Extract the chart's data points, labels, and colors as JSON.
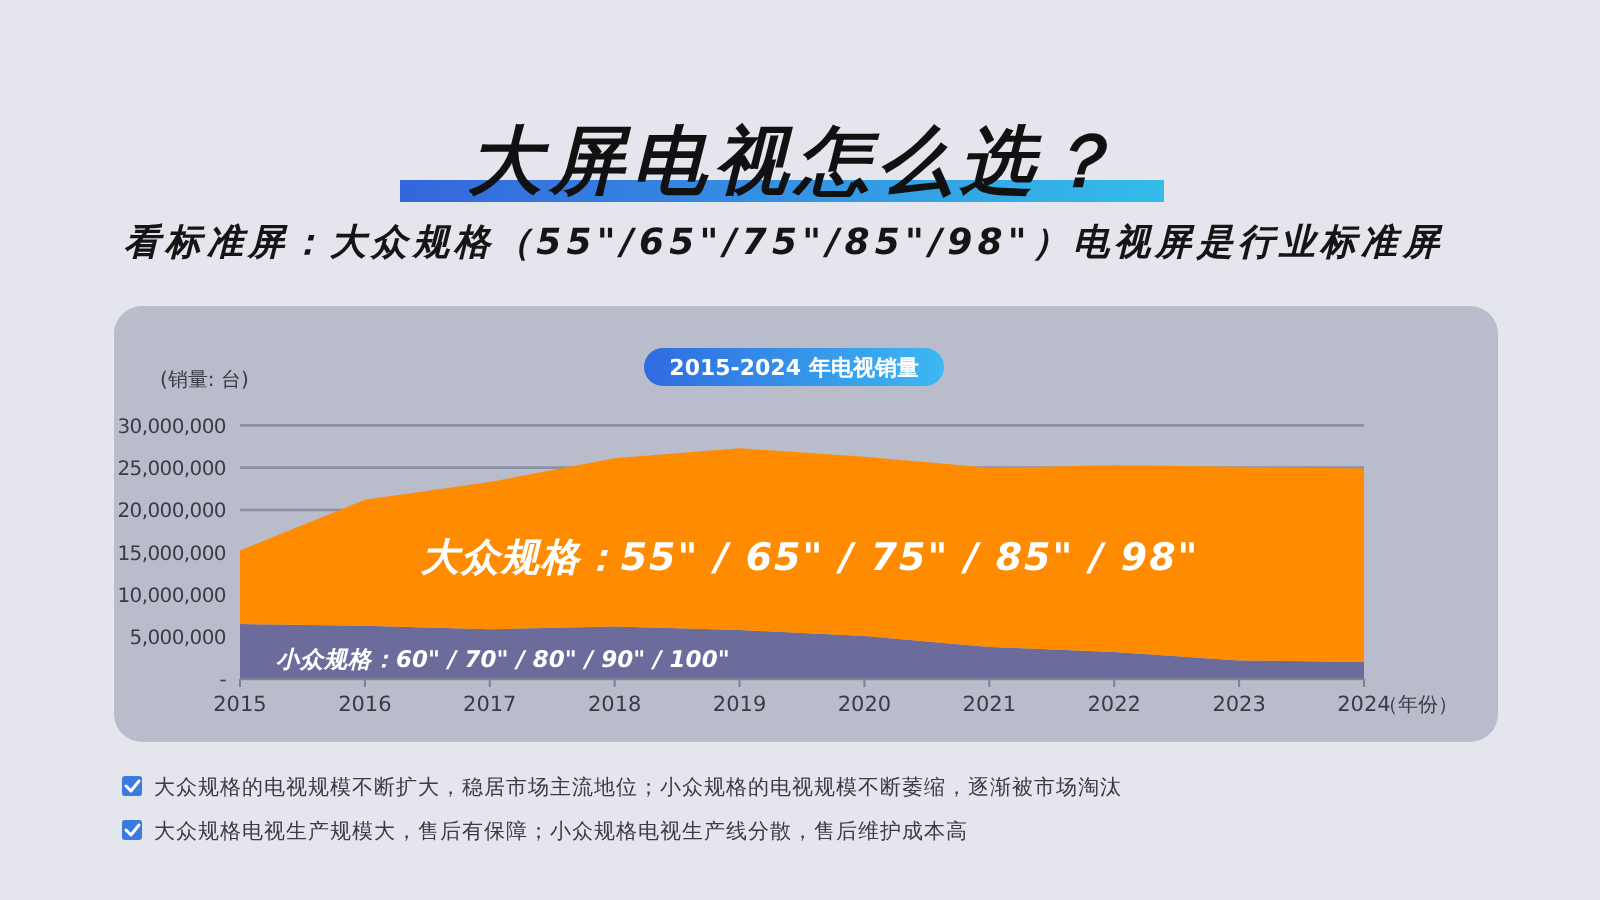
{
  "chart_data": {
    "type": "area",
    "title": "大屏电视怎么选？",
    "subtitle": "看标准屏：大众规格（55\"/65\"/75\"/85\"/98\"）电视屏是行业标准屏",
    "xlabel": "（年份）",
    "ylabel": "(销量: 台)",
    "annotations": [
      "2015-2024 年电视销量",
      "大众规格的电视规模不断扩大，稳居市场主流地位；小众规格的电视规模不断萎缩，逐渐被市场淘汰",
      "大众规格电视生产规模大，售后有保障；小众规格电视生产线分散，售后维护成本高"
    ],
    "x": [
      2015,
      2016,
      2017,
      2018,
      2019,
      2020,
      2021,
      2022,
      2023,
      2024
    ],
    "stacked": true,
    "series": [
      {
        "name": "小众规格：60\" / 70\" / 80\" / 90\" / 100\"",
        "color": "#6b6c9c",
        "values": [
          6500000,
          6300000,
          5900000,
          6200000,
          5800000,
          5100000,
          3800000,
          3200000,
          2200000,
          2000000
        ]
      },
      {
        "name": "大众规格：55\" / 65\" / 75\" / 85\" / 98\"",
        "color": "#ff8c00",
        "values": [
          8700000,
          14900000,
          17400000,
          19900000,
          21500000,
          21200000,
          21200000,
          22100000,
          22900000,
          22900000
        ]
      }
    ],
    "xlim": [
      2015,
      2024
    ],
    "ylim": [
      0,
      30000000
    ],
    "xticks": [
      2015,
      2016,
      2017,
      2018,
      2019,
      2020,
      2021,
      2022,
      2023,
      2024
    ],
    "yticks": [
      {
        "value": 0,
        "label": "-"
      },
      {
        "value": 5000000,
        "label": "5,000,000"
      },
      {
        "value": 10000000,
        "label": "10,000,000"
      },
      {
        "value": 15000000,
        "label": "15,000,000"
      },
      {
        "value": 20000000,
        "label": "20,000,000"
      },
      {
        "value": 25000000,
        "label": "25,000,000"
      },
      {
        "value": 30000000,
        "label": "30,000,000"
      }
    ],
    "grid": "y"
  }
}
